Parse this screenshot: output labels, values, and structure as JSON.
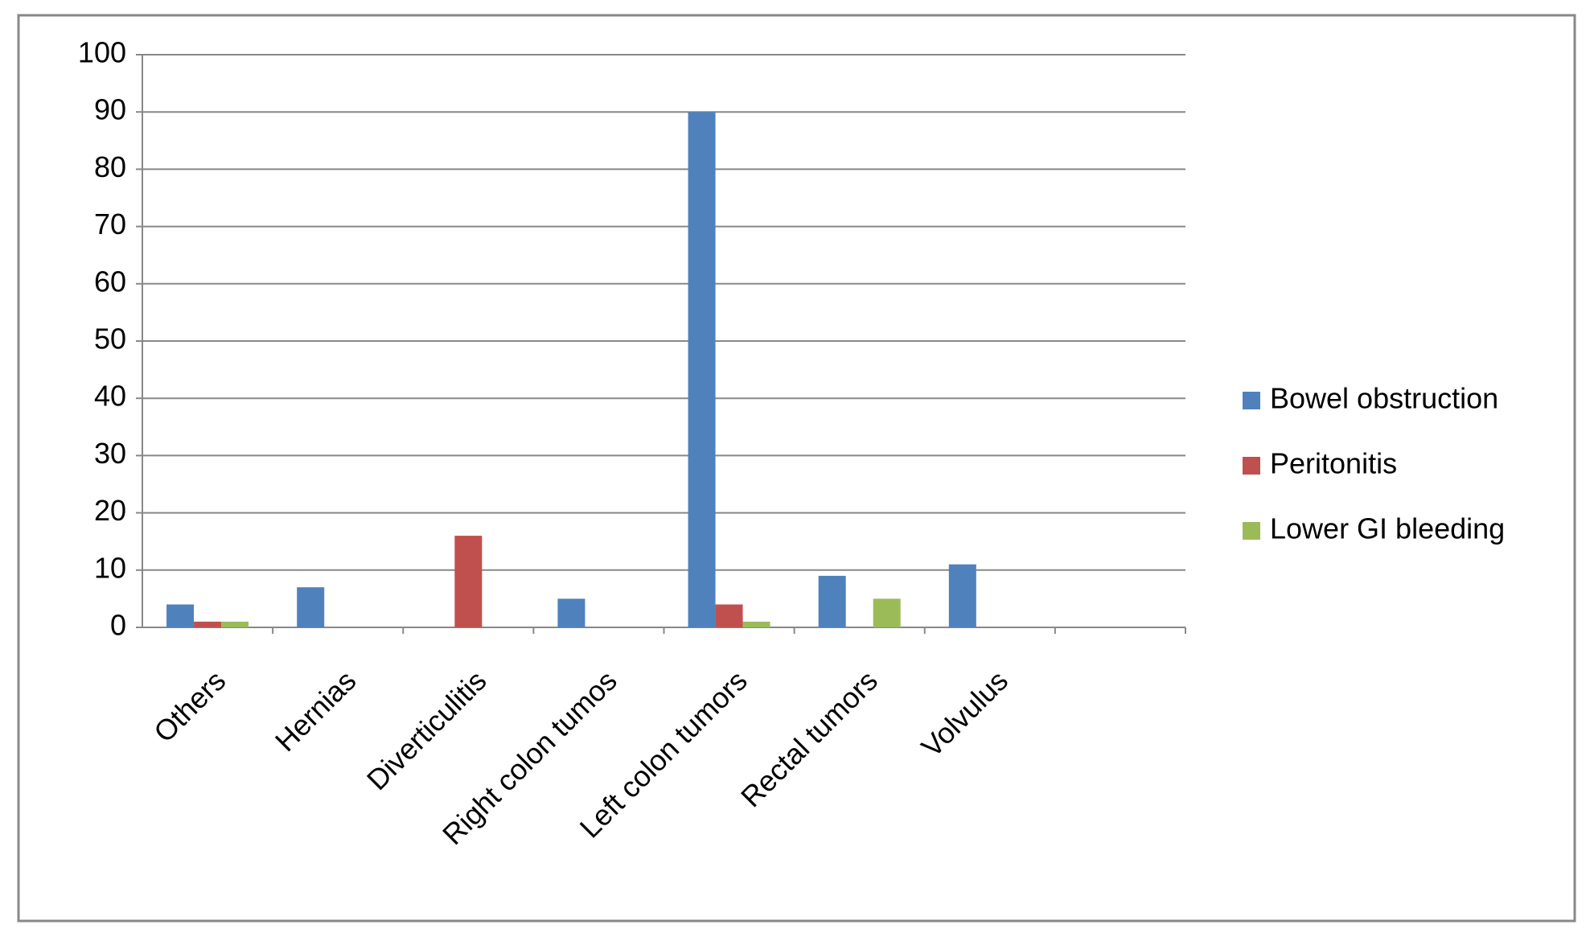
{
  "chart_data": {
    "type": "bar",
    "categories": [
      "Others",
      "Hernias",
      "Diverticulitis",
      "Right colon tumos",
      "Left colon tumors",
      "Rectal tumors",
      "Volvulus",
      null
    ],
    "series": [
      {
        "name": "Bowel obstruction",
        "color": "#4f81bd",
        "values": [
          4,
          7,
          0,
          5,
          90,
          9,
          11,
          null
        ]
      },
      {
        "name": "Peritonitis",
        "color": "#c0504d",
        "values": [
          1,
          0,
          16,
          0,
          4,
          0,
          0,
          null
        ]
      },
      {
        "name": "Lower GI bleeding",
        "color": "#9bbb59",
        "values": [
          1,
          0,
          0,
          0,
          1,
          5,
          0,
          null
        ]
      }
    ],
    "ylim": [
      0,
      100
    ],
    "yticks": [
      0,
      10,
      20,
      30,
      40,
      50,
      60,
      70,
      80,
      90,
      100
    ],
    "grid": true,
    "legend": "right"
  }
}
